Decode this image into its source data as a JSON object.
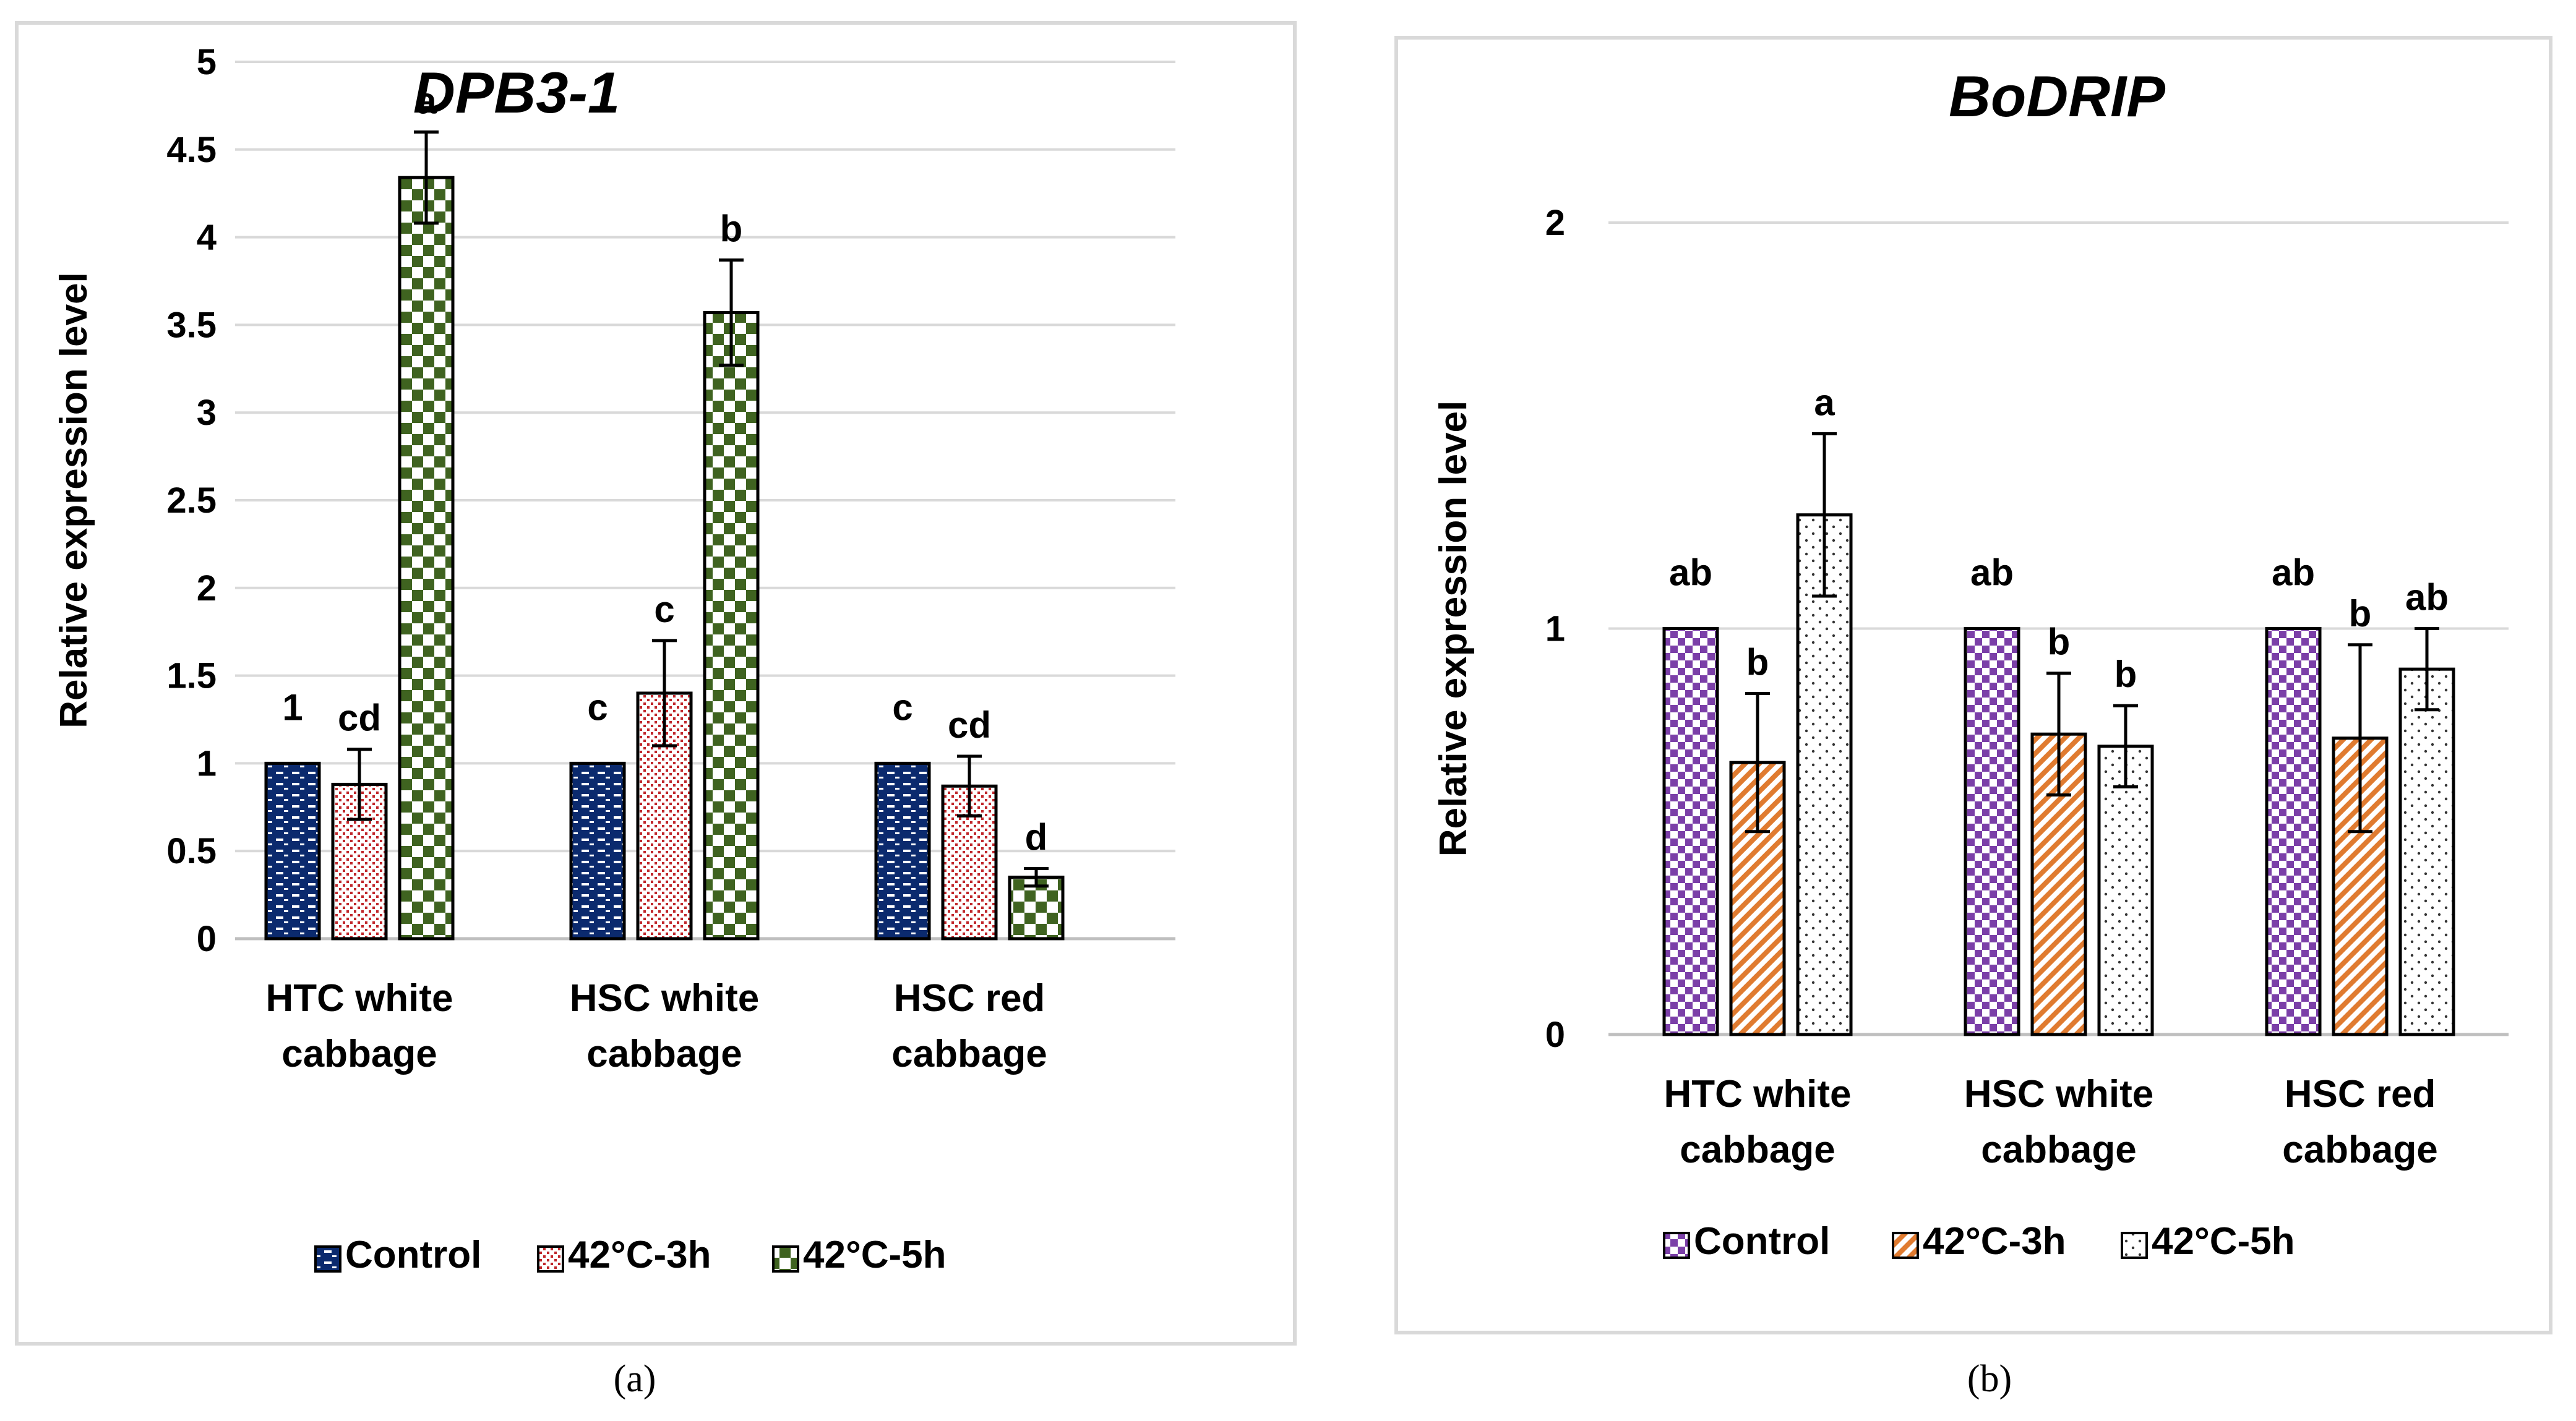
{
  "chart_data": [
    {
      "panel": "a",
      "type": "bar",
      "title": "DPB3-1",
      "ylabel": "Relative expression level",
      "xlabel": "",
      "ylim": [
        0,
        5
      ],
      "yticks": [
        "0",
        "0.5",
        "1",
        "1.5",
        "2",
        "2.5",
        "3",
        "3.5",
        "4",
        "4.5",
        "5"
      ],
      "categories": [
        [
          "HTC white",
          "cabbage"
        ],
        [
          "HSC white",
          "cabbage"
        ],
        [
          "HSC red",
          "cabbage"
        ]
      ],
      "series": [
        {
          "name": "Control",
          "values": [
            1.0,
            1.0,
            1.0
          ],
          "errors": [
            0,
            0,
            0
          ],
          "labels": [
            "1",
            "c",
            "c"
          ]
        },
        {
          "name": "42°C-3h",
          "values": [
            0.88,
            1.4,
            0.87
          ],
          "errors": [
            0.2,
            0.3,
            0.17
          ],
          "labels": [
            "cd",
            "c",
            "cd"
          ]
        },
        {
          "name": "42°C-5h",
          "values": [
            4.34,
            3.57,
            0.35
          ],
          "errors": [
            0.26,
            0.3,
            0.05
          ],
          "labels": [
            "a",
            "b",
            "d"
          ]
        }
      ],
      "grid": true,
      "legend": "bottom",
      "caption": "(a)"
    },
    {
      "panel": "b",
      "type": "bar",
      "title": "BoDRIP",
      "ylabel": "Relative expression level",
      "xlabel": "",
      "ylim": [
        0,
        2
      ],
      "yticks": [
        "0",
        "1",
        "2"
      ],
      "categories": [
        [
          "HTC white",
          "cabbage"
        ],
        [
          "HSC white",
          "cabbage"
        ],
        [
          "HSC red",
          "cabbage"
        ]
      ],
      "series": [
        {
          "name": "Control",
          "values": [
            1.0,
            1.0,
            1.0
          ],
          "errors": [
            0,
            0,
            0
          ],
          "labels": [
            "ab",
            "ab",
            "ab"
          ]
        },
        {
          "name": "42°C-3h",
          "values": [
            0.67,
            0.74,
            0.73
          ],
          "errors": [
            0.17,
            0.15,
            0.23
          ],
          "labels": [
            "b",
            "b",
            "b"
          ]
        },
        {
          "name": "42°C-5h",
          "values": [
            1.28,
            0.71,
            0.9
          ],
          "errors": [
            0.2,
            0.1,
            0.1
          ],
          "labels": [
            "a",
            "b",
            "ab"
          ]
        }
      ],
      "grid": true,
      "legend": "bottom",
      "caption": "(b)"
    }
  ],
  "colors": {
    "a_control": "#0b2a6e",
    "a_3h": "#c0262a",
    "a_5h": "#3f6320",
    "b_control": "#7b3fa8",
    "b_3h": "#e07b30",
    "b_5h": "#333333",
    "grid": "#d9d9d9",
    "frame": "#d9d9d9"
  }
}
